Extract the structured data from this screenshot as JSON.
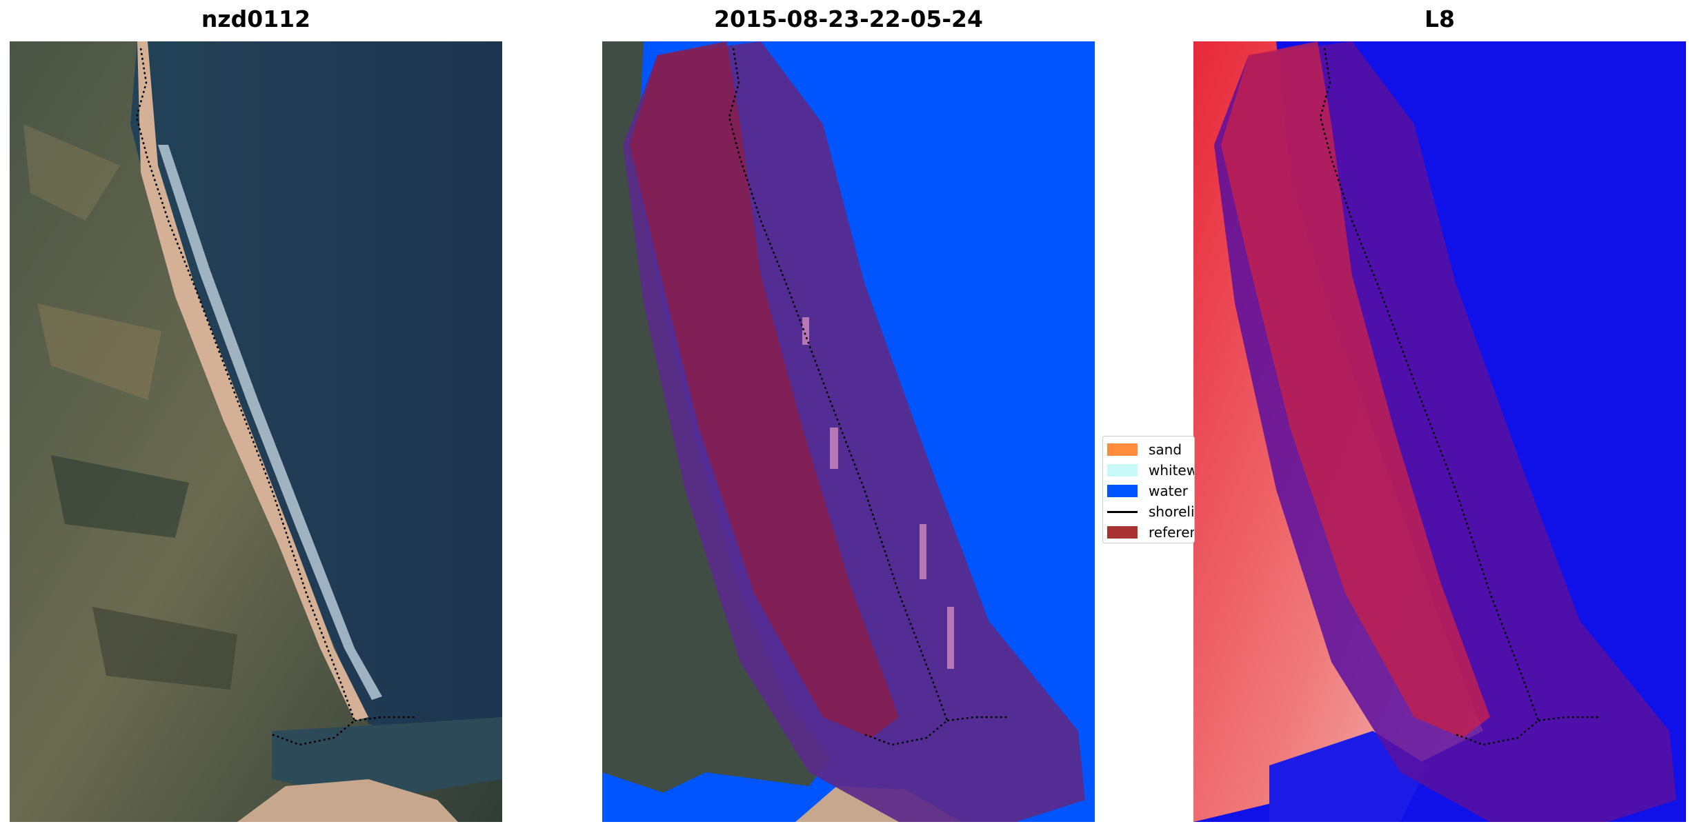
{
  "panels": [
    {
      "title": "nzd0112"
    },
    {
      "title": "2015-08-23-22-05-24"
    },
    {
      "title": "L8"
    }
  ],
  "legend": {
    "items": [
      {
        "label": "sand",
        "color": "#ff8c3a",
        "kind": "patch"
      },
      {
        "label": "whitewater",
        "color": "#c8f8f8",
        "kind": "patch"
      },
      {
        "label": "water",
        "color": "#0055ff",
        "kind": "patch"
      },
      {
        "label": "shoreline",
        "color": "#000000",
        "kind": "line"
      },
      {
        "label": "reference shoreline buffer",
        "color": "#a83232",
        "kind": "patch"
      }
    ]
  },
  "colors": {
    "ocean": "#1e3a4f",
    "land": "#3c4a3a",
    "sand": "#d9b597",
    "classified_water": "#0055ff",
    "buffer_overlay": "#5a2a8a",
    "buffer_reference": "#8a1d4c",
    "index_positive": "#e8283a",
    "index_negative": "#1010e8"
  }
}
